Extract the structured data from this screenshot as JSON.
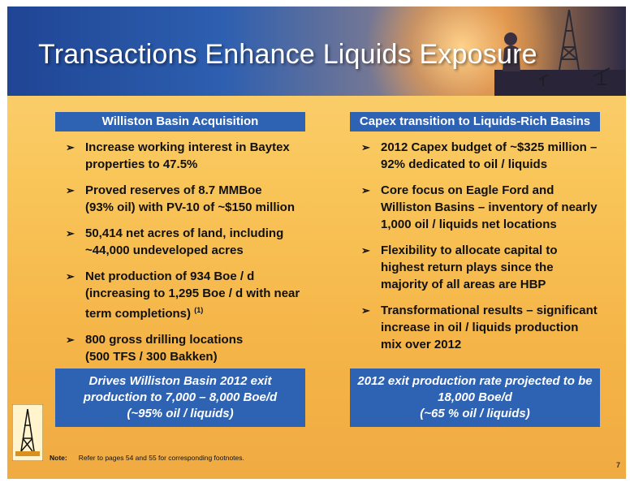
{
  "slide": {
    "title": "Transactions Enhance Liquids Exposure",
    "left": {
      "heading": "Williston Basin Acquisition",
      "bullets": [
        {
          "lines": [
            "Increase working interest in Baytex",
            "properties to 47.5%"
          ]
        },
        {
          "lines": [
            "Proved reserves of 8.7 MMBoe",
            "(93% oil) with PV-10 of ~$150 million"
          ]
        },
        {
          "lines": [
            "50,414 net acres of land, including",
            "~44,000 undeveloped acres"
          ]
        },
        {
          "lines": [
            "Net production of 934 Boe / d",
            "(increasing to 1,295 Boe / d with near",
            "term completions)"
          ],
          "footnote": "(1)"
        },
        {
          "lines": [
            "800 gross drilling locations",
            "(500 TFS / 300 Bakken)"
          ]
        }
      ],
      "callout": [
        "Drives Williston Basin 2012 exit",
        "production to 7,000 – 8,000 Boe/d",
        "(~95% oil / liquids)"
      ]
    },
    "right": {
      "heading": "Capex transition to Liquids-Rich Basins",
      "bullets": [
        {
          "lines": [
            "2012 Capex budget of ~$325 million –",
            "92% dedicated to oil / liquids"
          ]
        },
        {
          "lines": [
            "Core focus on Eagle Ford and",
            "Williston Basins – inventory of nearly",
            "1,000 oil / liquids net locations"
          ]
        },
        {
          "lines": [
            "Flexibility to allocate capital to",
            "highest return plays since the",
            "majority of all areas are HBP"
          ]
        },
        {
          "lines": [
            "Transformational results – significant",
            "increase in oil / liquids production",
            "mix over 2012"
          ]
        }
      ],
      "callout": [
        "2012 exit production rate projected to be",
        "18,000 Boe/d",
        "(~65 % oil / liquids)"
      ]
    },
    "note_label": "Note:",
    "note_text": "Refer to pages 54 and 55 for corresponding footnotes.",
    "page_number": "7",
    "bullet_glyph": "➢",
    "colors": {
      "accent_blue": "#2e63b3",
      "banner_blue": "#1f4594",
      "background_gold": "#f9c65a"
    },
    "icons": [
      "oil-derrick-logo-icon",
      "drilling-rig-image"
    ]
  }
}
